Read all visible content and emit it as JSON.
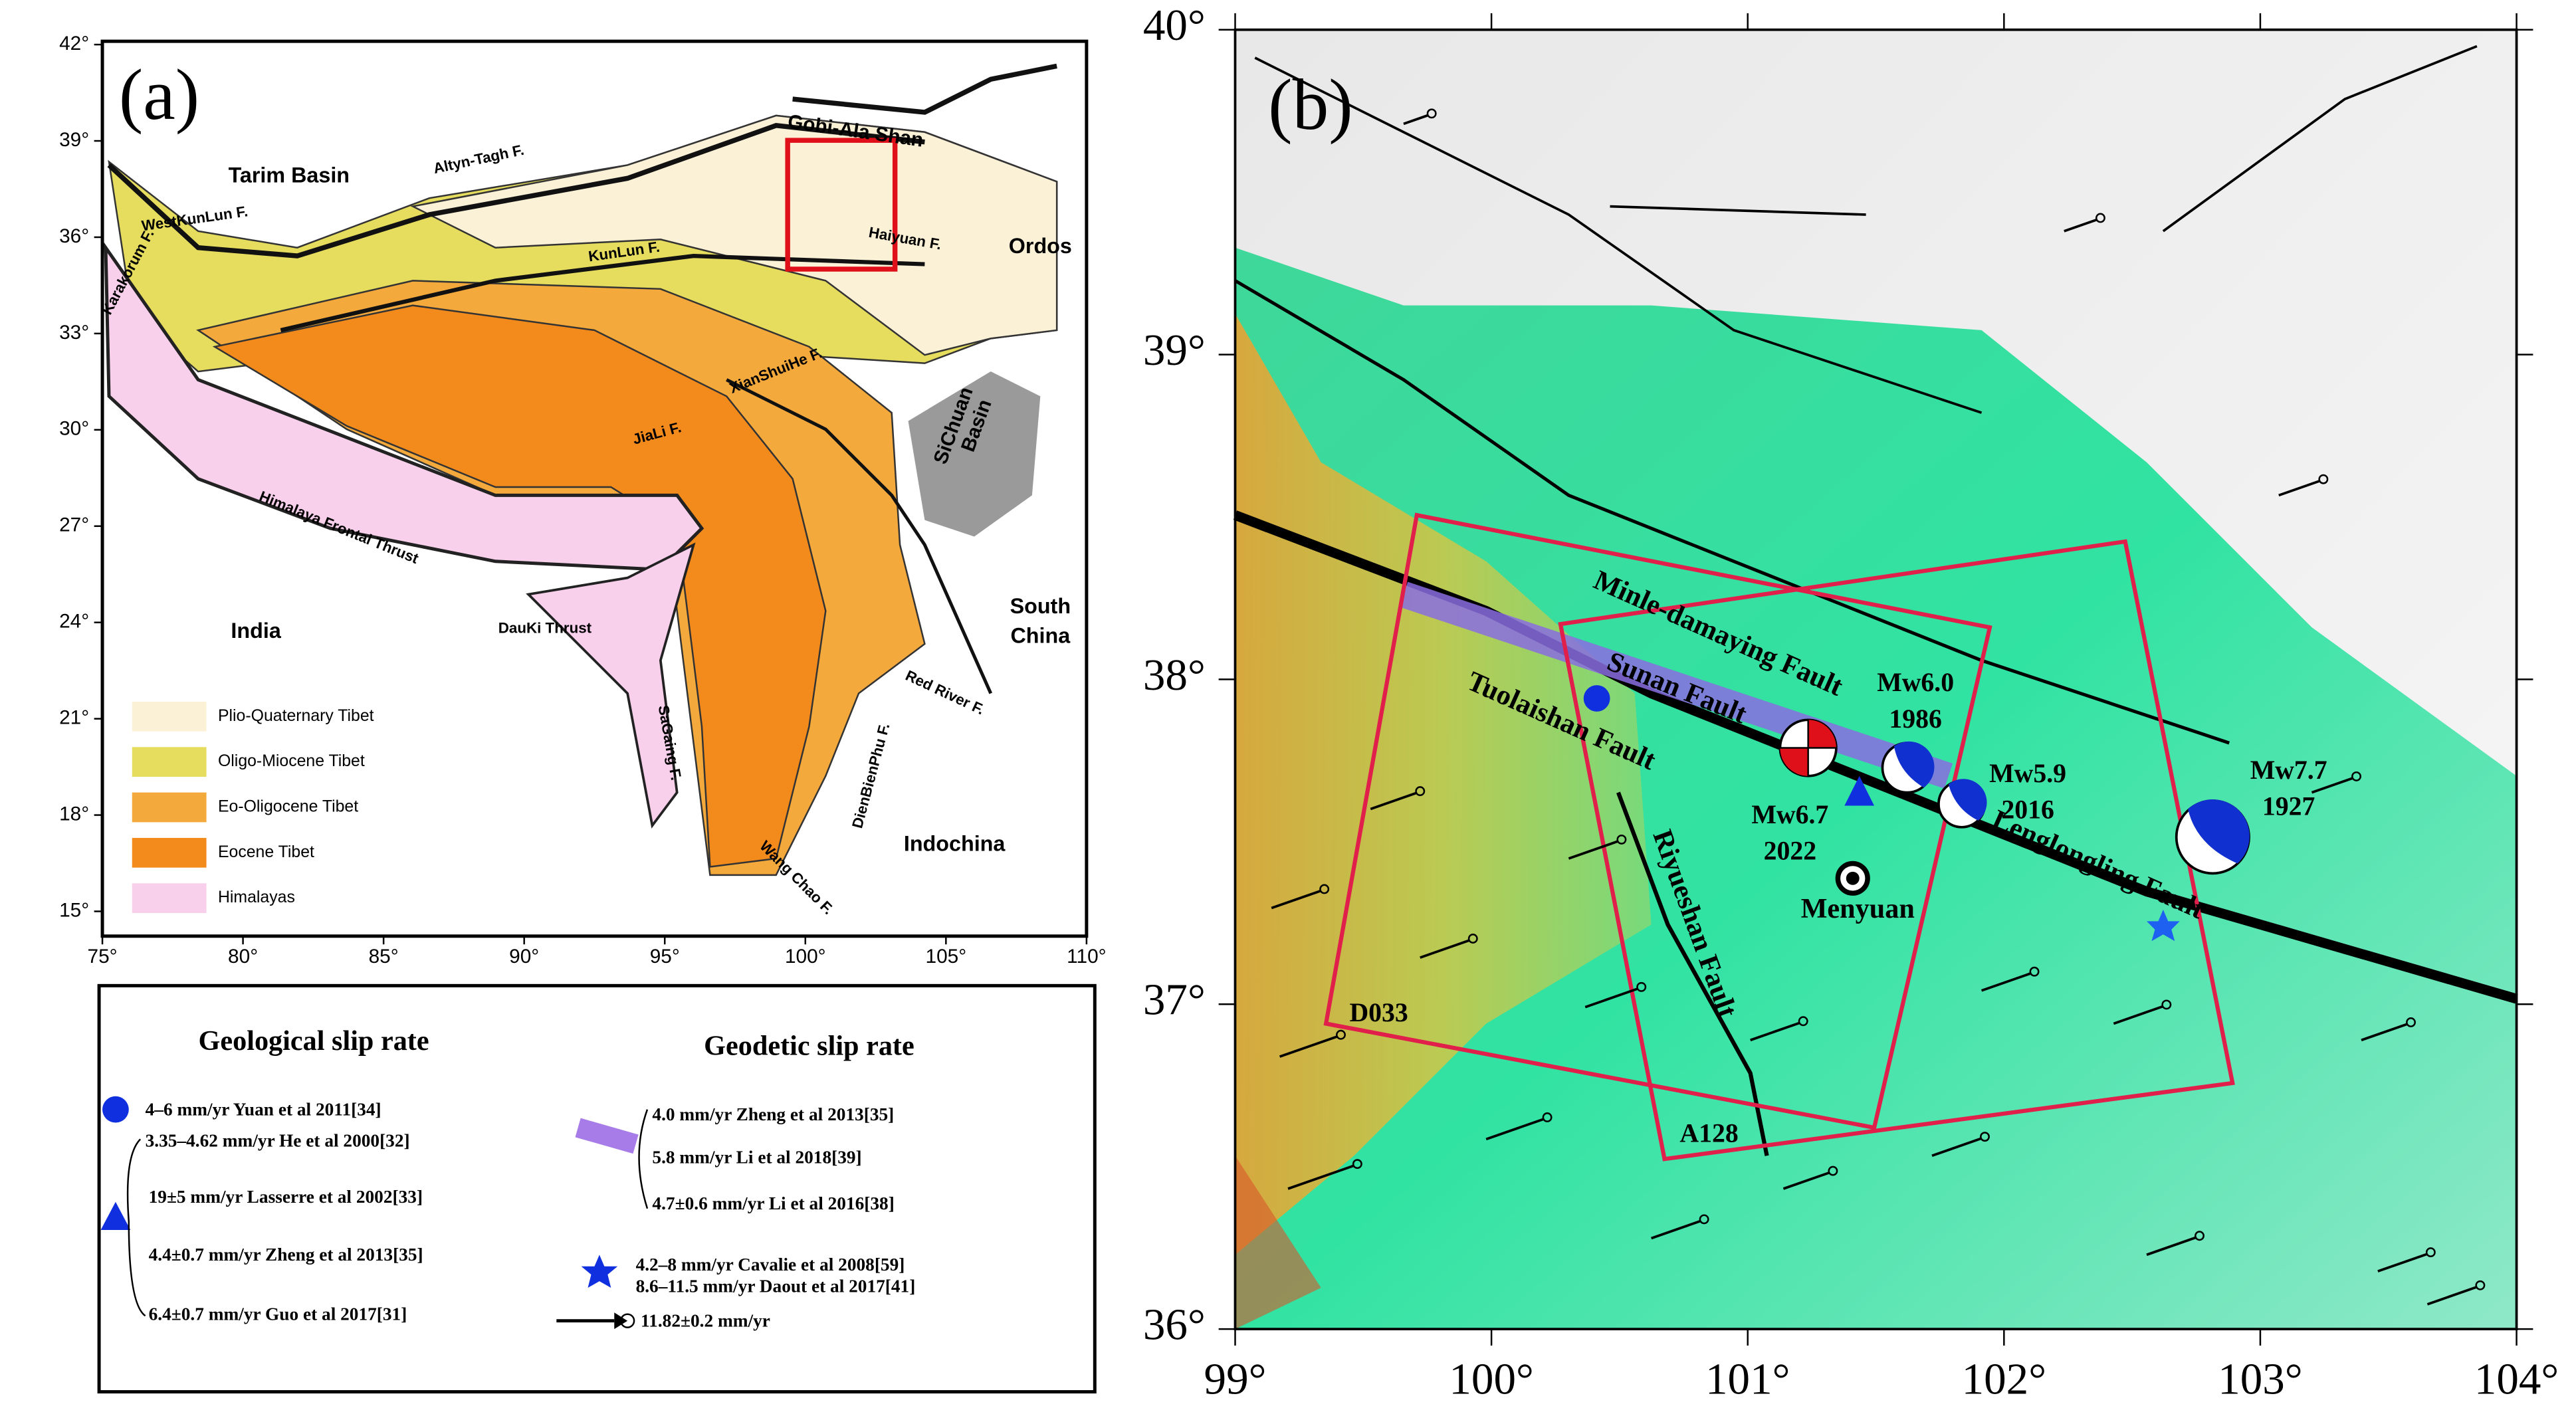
{
  "panel_a": {
    "label": "(a)",
    "lon_ticks": [
      "75°",
      "80°",
      "85°",
      "90°",
      "95°",
      "100°",
      "105°",
      "110°"
    ],
    "lat_ticks": [
      "15°",
      "18°",
      "21°",
      "24°",
      "27°",
      "30°",
      "33°",
      "36°",
      "39°",
      "42°"
    ],
    "place_labels": [
      "Tarim Basin",
      "Altyn-Tagh F.",
      "Gobi-Ala Shan",
      "WestKunLun F.",
      "Karakorum F.",
      "KunLun F.",
      "Haiyuan F.",
      "Ordos",
      "XianShuiHe F.",
      "SiChuan",
      "Basin",
      "JiaLi F.",
      "Himalaya Frontal Thrust",
      "India",
      "DauKi Thrust",
      "South",
      "China",
      "SaGaing F.",
      "Red River F.",
      "DienBienPhu F.",
      "Indochina",
      "Wang Chao F."
    ],
    "legend": [
      {
        "name": "Plio-Quaternary Tibet",
        "color": "#fbf1d6"
      },
      {
        "name": "Oligo-Miocene Tibet",
        "color": "#e6dd5e"
      },
      {
        "name": "Eo-Oligocene Tibet",
        "color": "#f3a93c"
      },
      {
        "name": "Eocene Tibet",
        "color": "#f28a1c"
      },
      {
        "name": "Himalayas",
        "color": "#f8d0ec"
      }
    ]
  },
  "panel_b": {
    "label": "(b)",
    "lon_ticks": [
      "99°",
      "100°",
      "101°",
      "102°",
      "103°",
      "104°"
    ],
    "lat_ticks": [
      "36°",
      "37°",
      "38°",
      "39°",
      "40°"
    ],
    "fault_labels": [
      "Minle-damaying Fault",
      "Sunan Fault",
      "Tuolaishan Fault",
      "Riyueshan Fault",
      "Lenglongling Fault"
    ],
    "places": [
      "Menyuan",
      "D033",
      "A128"
    ],
    "events": [
      {
        "magnitude": "Mw6.0",
        "year": "1986"
      },
      {
        "magnitude": "Mw5.9",
        "year": "2016"
      },
      {
        "magnitude": "Mw6.7",
        "year": "2022"
      },
      {
        "magnitude": "Mw7.7",
        "year": "1927"
      }
    ]
  },
  "slip_legend": {
    "geological_title": "Geological slip rate",
    "geological": [
      "4–6 mm/yr  Yuan et al 2011[34]",
      "3.35–4.62 mm/yr  He et al 2000[32]",
      "19±5 mm/yr Lasserre et al 2002[33]",
      "4.4±0.7 mm/yr Zheng et al 2013[35]",
      "6.4±0.7 mm/yr Guo et al 2017[31]"
    ],
    "geodetic_title": "Geodetic slip rate",
    "geodetic": [
      "4.0    mm/yr  Zheng et al 2013[35]",
      "5.8 mm/yr  Li et al 2018[39]",
      "4.7±0.6 mm/yr  Li et al 2016[38]",
      "4.2–8 mm/yr Cavalie  et al 2008[59]",
      "8.6–11.5 mm/yr  Daout et al 2017[41]",
      "11.82±0.2 mm/yr"
    ]
  }
}
